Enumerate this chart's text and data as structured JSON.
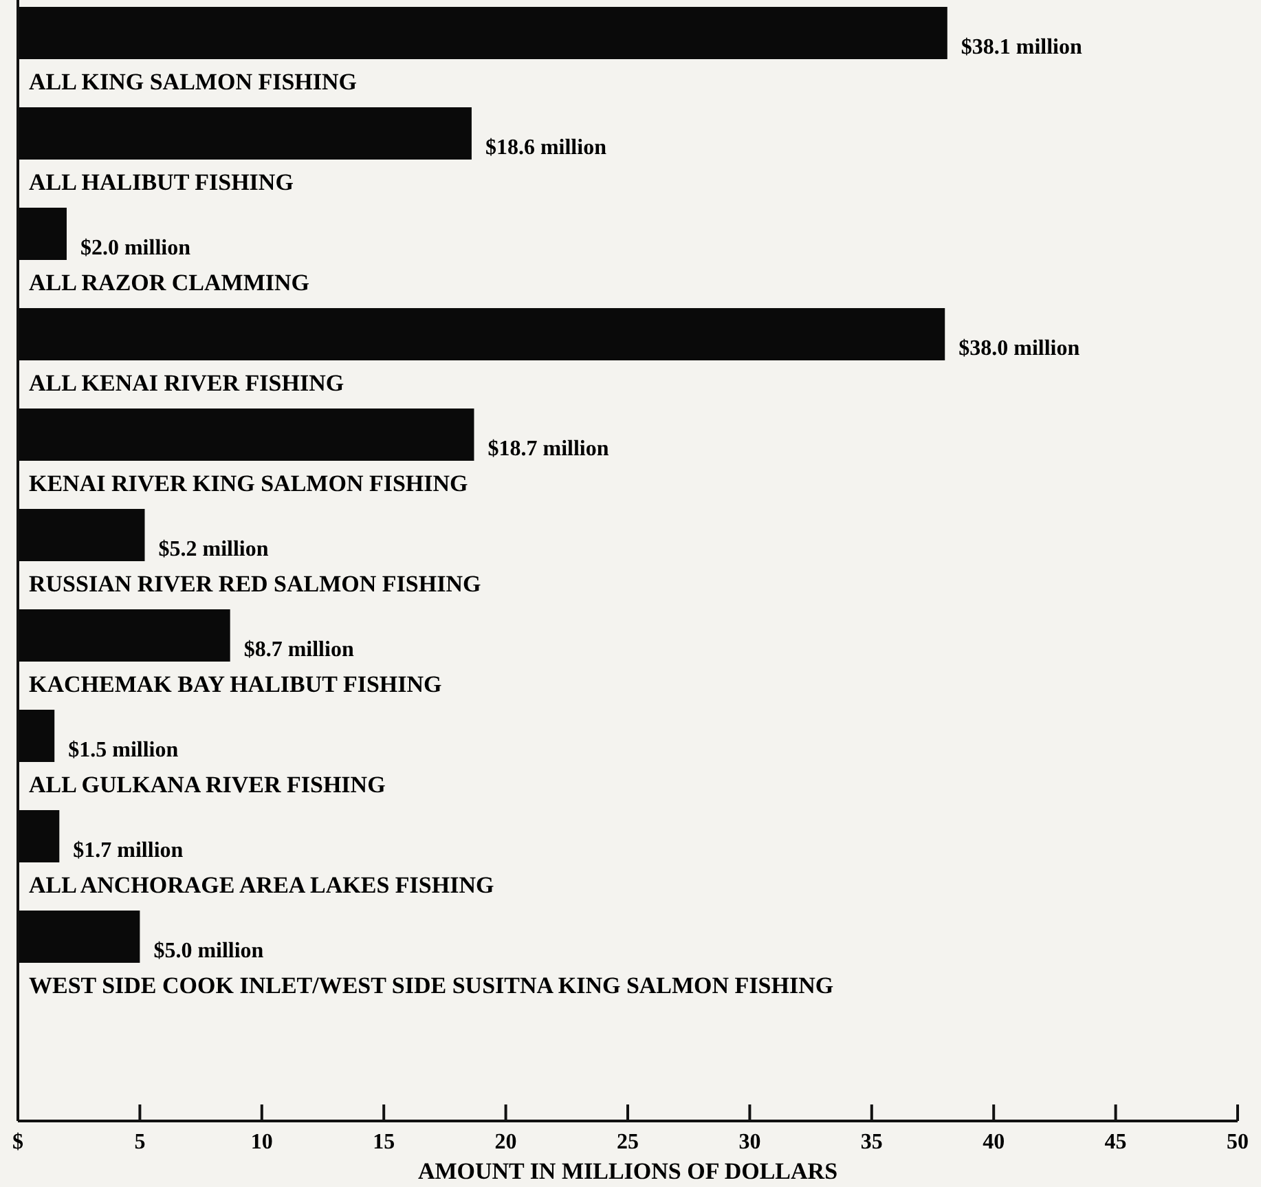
{
  "chart_data": {
    "type": "bar",
    "orientation": "horizontal",
    "xlabel": "AMOUNT IN MILLIONS OF DOLLARS",
    "categories": [
      "ALL KING SALMON FISHING",
      "ALL HALIBUT FISHING",
      "ALL RAZOR CLAMMING",
      "ALL KENAI RIVER FISHING",
      "KENAI RIVER KING SALMON FISHING",
      "RUSSIAN RIVER RED SALMON FISHING",
      "KACHEMAK BAY HALIBUT FISHING",
      "ALL GULKANA RIVER FISHING",
      "ALL ANCHORAGE AREA LAKES FISHING",
      "WEST SIDE COOK INLET/WEST SIDE SUSITNA KING SALMON FISHING"
    ],
    "values": [
      38.1,
      18.6,
      2.0,
      38.0,
      18.7,
      5.2,
      8.7,
      1.5,
      1.7,
      5.0
    ],
    "value_labels": [
      "$38.1 million",
      "$18.6 million",
      "$2.0 million",
      "$38.0 million",
      "$18.7 million",
      "$5.2 million",
      "$8.7 million",
      "$1.5 million",
      "$1.7 million",
      "$5.0 million"
    ],
    "color": "#0a0a0a",
    "xlim": [
      0,
      50
    ],
    "xticks": [
      {
        "value": 0,
        "label": "$"
      },
      5,
      10,
      15,
      20,
      25,
      30,
      35,
      40,
      45,
      50
    ]
  }
}
